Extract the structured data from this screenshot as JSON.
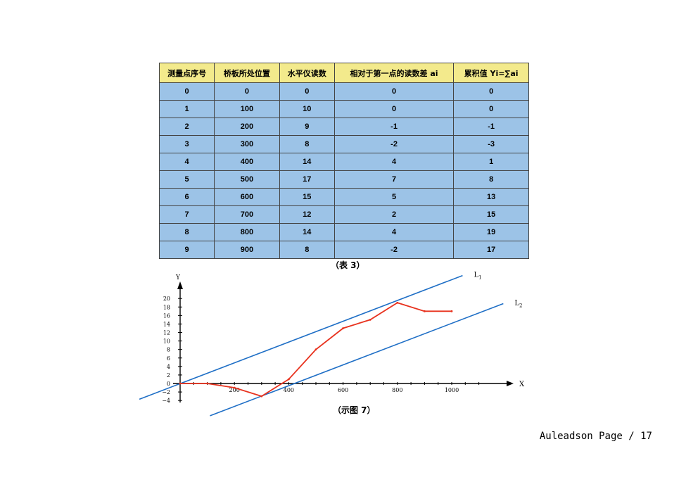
{
  "table": {
    "headers": [
      "测量点序号",
      "桥板所处位置",
      "水平仪读数",
      "相对于第一点的读数差 ai",
      "累积值 Yi=∑ai"
    ],
    "rows": [
      [
        "0",
        "0",
        "0",
        "0",
        "0"
      ],
      [
        "1",
        "100",
        "10",
        "0",
        "0"
      ],
      [
        "2",
        "200",
        "9",
        "-1",
        "-1"
      ],
      [
        "3",
        "300",
        "8",
        "-2",
        "-3"
      ],
      [
        "4",
        "400",
        "14",
        "4",
        "1"
      ],
      [
        "5",
        "500",
        "17",
        "7",
        "8"
      ],
      [
        "6",
        "600",
        "15",
        "5",
        "13"
      ],
      [
        "7",
        "700",
        "12",
        "2",
        "15"
      ],
      [
        "8",
        "800",
        "14",
        "4",
        "19"
      ],
      [
        "9",
        "900",
        "8",
        "-2",
        "17"
      ]
    ],
    "caption": "（表 3）"
  },
  "chart_data": {
    "type": "line",
    "xlabel": "X",
    "ylabel": "Y",
    "x_ticks": [
      200,
      400,
      600,
      800,
      1000
    ],
    "y_ticks": [
      -4,
      -2,
      0,
      2,
      4,
      6,
      8,
      10,
      12,
      14,
      16,
      18,
      20
    ],
    "xlim": [
      0,
      1100
    ],
    "ylim": [
      -4,
      20
    ],
    "series": [
      {
        "color": "#e8321e",
        "x": [
          0,
          100,
          200,
          300,
          400,
          500,
          600,
          700,
          800,
          900,
          1000
        ],
        "y": [
          0,
          0,
          -1,
          -3,
          1,
          8,
          13,
          15,
          19,
          17,
          17
        ]
      }
    ],
    "lines": [
      {
        "name": "L1",
        "color": "#1f6fc6",
        "x": [
          -150,
          1040
        ],
        "y": [
          -3.7,
          25.4
        ]
      },
      {
        "name": "L2",
        "color": "#1f6fc6",
        "x": [
          110,
          1190
        ],
        "y": [
          -7.6,
          18.8
        ]
      }
    ],
    "caption": "（示图 7）"
  },
  "footer": "Auleadson Page / 17"
}
